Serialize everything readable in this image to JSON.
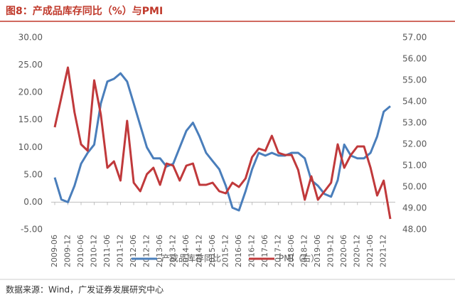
{
  "chart_data": {
    "type": "line",
    "title": "图8：产成品库存同比（%）与PMI",
    "source": "数据来源：Wind，广发证券发展研究中心",
    "categories": [
      "2009-06",
      null,
      "2009-12",
      null,
      "2010-06",
      null,
      "2010-12",
      null,
      "2011-06",
      null,
      "2011-12",
      null,
      "2012-06",
      null,
      "2012-12",
      null,
      "2013-06",
      null,
      "2013-12",
      null,
      "2014-06",
      null,
      "2014-12",
      null,
      "2015-06",
      null,
      "2015-12",
      null,
      "2016-06",
      null,
      "2016-12",
      null,
      "2017-06",
      null,
      "2017-12",
      null,
      "2018-06",
      null,
      "2018-12",
      null,
      "2019-06",
      null,
      "2019-12",
      null,
      "2020-06",
      null,
      "2020-12",
      null,
      "2021-06",
      null,
      "2021-12",
      null
    ],
    "series": [
      {
        "name": "产成品库存同比",
        "color": "#4a7ebb",
        "axis": "y",
        "values": [
          4.5,
          0.5,
          0,
          3,
          7,
          9,
          10.5,
          18,
          22,
          22.5,
          23.5,
          22,
          18,
          14,
          10,
          8,
          8,
          6.5,
          7,
          10,
          13,
          14.5,
          12,
          9,
          7.5,
          6,
          3,
          -1,
          -1.5,
          2,
          6,
          9,
          8.5,
          9,
          8.5,
          8.5,
          9,
          9,
          8,
          4,
          3,
          1.5,
          1,
          4,
          10.5,
          8.5,
          8,
          8,
          9,
          12,
          16.5,
          17.5
        ]
      },
      {
        "name": "PMI（右）",
        "color": "#c0393b",
        "axis": "y2",
        "values": [
          52.8,
          54.2,
          55.6,
          53.5,
          52.0,
          51.7,
          55.0,
          53.4,
          50.9,
          51.2,
          50.3,
          53.1,
          50.2,
          49.8,
          50.6,
          50.9,
          50.1,
          51.1,
          51.0,
          50.3,
          51.0,
          51.1,
          50.1,
          50.1,
          50.2,
          49.8,
          49.7,
          50.2,
          50.0,
          50.4,
          51.4,
          51.8,
          51.7,
          52.4,
          51.6,
          51.5,
          51.5,
          50.8,
          49.4,
          50.5,
          49.4,
          49.8,
          50.2,
          52.0,
          50.9,
          51.5,
          51.9,
          51.9,
          50.9,
          49.6,
          50.3,
          48.5
        ]
      }
    ],
    "ylim": [
      -5,
      30
    ],
    "yticks": [
      {
        "value": -5,
        "label": "-5.00"
      },
      {
        "value": 0,
        "label": "0.00"
      },
      {
        "value": 5,
        "label": "5.00"
      },
      {
        "value": 10,
        "label": "10.00"
      },
      {
        "value": 15,
        "label": "15.00"
      },
      {
        "value": 20,
        "label": "20.00"
      },
      {
        "value": 25,
        "label": "25.00"
      },
      {
        "value": 30,
        "label": "30.00"
      }
    ],
    "y2lim": [
      48,
      57
    ],
    "y2ticks": [
      {
        "value": 48,
        "label": "48.00"
      },
      {
        "value": 49,
        "label": "49.00"
      },
      {
        "value": 50,
        "label": "50.00"
      },
      {
        "value": 51,
        "label": "51.00"
      },
      {
        "value": 52,
        "label": "52.00"
      },
      {
        "value": 53,
        "label": "53.00"
      },
      {
        "value": 54,
        "label": "54.00"
      },
      {
        "value": 55,
        "label": "55.00"
      },
      {
        "value": 56,
        "label": "56.00"
      },
      {
        "value": 57,
        "label": "57.00"
      }
    ],
    "grid": false
  }
}
